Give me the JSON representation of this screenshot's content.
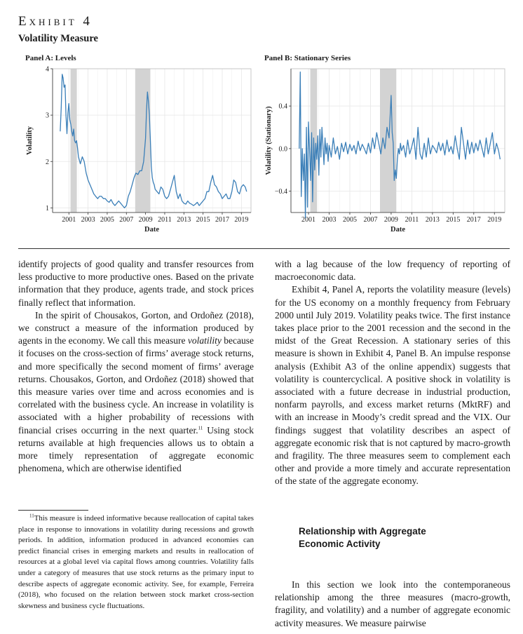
{
  "exhibit": {
    "label": "Exhibit 4",
    "subtitle": "Volatility Measure"
  },
  "chart_data": [
    {
      "type": "line",
      "title": "Panel A: Levels",
      "xlabel": "Date",
      "ylabel": "Volatility",
      "xlim": [
        1999.3,
        2020.0
      ],
      "ylim": [
        0.9,
        4.0
      ],
      "xticks": [
        "2001",
        "2003",
        "2005",
        "2007",
        "2009",
        "2011",
        "2013",
        "2015",
        "2017",
        "2019"
      ],
      "yticks": [
        "1",
        "2",
        "3",
        "4"
      ],
      "grid": true,
      "recessions": [
        [
          2001.17,
          2001.83
        ],
        [
          2007.92,
          2009.5
        ]
      ],
      "color": "#3b7fb8",
      "series": [
        {
          "x": [
            2000.1,
            2000.2,
            2000.3,
            2000.4,
            2000.5,
            2000.6,
            2000.7,
            2000.8,
            2000.9,
            2001.0,
            2001.1,
            2001.2,
            2001.3,
            2001.4,
            2001.5,
            2001.6,
            2001.7,
            2001.8,
            2001.9,
            2002.0,
            2002.2,
            2002.4,
            2002.6,
            2002.8,
            2003.0,
            2003.2,
            2003.4,
            2003.6,
            2003.8,
            2004.0,
            2004.2,
            2004.4,
            2004.6,
            2004.8,
            2005.0,
            2005.2,
            2005.4,
            2005.6,
            2005.8,
            2006.0,
            2006.2,
            2006.4,
            2006.6,
            2006.8,
            2007.0,
            2007.2,
            2007.4,
            2007.6,
            2007.8,
            2008.0,
            2008.2,
            2008.4,
            2008.6,
            2008.8,
            2009.0,
            2009.1,
            2009.2,
            2009.3,
            2009.4,
            2009.5,
            2009.6,
            2009.7,
            2009.8,
            2009.9,
            2010.0,
            2010.2,
            2010.4,
            2010.6,
            2010.8,
            2011.0,
            2011.2,
            2011.4,
            2011.6,
            2011.8,
            2012.0,
            2012.2,
            2012.4,
            2012.6,
            2012.8,
            2013.0,
            2013.2,
            2013.4,
            2013.6,
            2013.8,
            2014.0,
            2014.2,
            2014.4,
            2014.6,
            2014.8,
            2015.0,
            2015.2,
            2015.4,
            2015.6,
            2015.8,
            2016.0,
            2016.2,
            2016.4,
            2016.6,
            2016.8,
            2017.0,
            2017.2,
            2017.4,
            2017.6,
            2017.8,
            2018.0,
            2018.2,
            2018.4,
            2018.6,
            2018.8,
            2019.0,
            2019.2,
            2019.4,
            2019.55
          ],
          "y": [
            2.65,
            3.15,
            3.88,
            3.8,
            3.6,
            3.65,
            3.0,
            2.6,
            3.05,
            3.25,
            2.9,
            2.8,
            2.65,
            2.55,
            2.7,
            2.45,
            2.4,
            2.45,
            2.3,
            2.1,
            1.95,
            2.1,
            2.0,
            1.75,
            1.6,
            1.5,
            1.4,
            1.3,
            1.25,
            1.2,
            1.25,
            1.25,
            1.2,
            1.2,
            1.15,
            1.12,
            1.18,
            1.1,
            1.05,
            1.1,
            1.15,
            1.1,
            1.05,
            1.0,
            1.05,
            1.25,
            1.35,
            1.5,
            1.65,
            1.75,
            1.72,
            1.8,
            1.8,
            2.0,
            2.5,
            3.1,
            3.5,
            3.3,
            3.0,
            2.5,
            1.9,
            1.65,
            1.55,
            1.5,
            1.4,
            1.35,
            1.3,
            1.45,
            1.4,
            1.25,
            1.2,
            1.25,
            1.4,
            1.55,
            1.7,
            1.35,
            1.2,
            1.3,
            1.15,
            1.1,
            1.08,
            1.15,
            1.1,
            1.08,
            1.05,
            1.08,
            1.12,
            1.05,
            1.1,
            1.15,
            1.2,
            1.35,
            1.35,
            1.55,
            1.7,
            1.5,
            1.45,
            1.35,
            1.3,
            1.2,
            1.25,
            1.3,
            1.2,
            1.2,
            1.35,
            1.6,
            1.55,
            1.35,
            1.3,
            1.45,
            1.5,
            1.45,
            1.35
          ]
        }
      ]
    },
    {
      "type": "line",
      "title": "Panel B: Stationary Series",
      "xlabel": "Date",
      "ylabel": "Volatility (Stationary)",
      "xlim": [
        1999.3,
        2020.0
      ],
      "ylim": [
        -0.6,
        0.75
      ],
      "xticks": [
        "2001",
        "2003",
        "2005",
        "2007",
        "2009",
        "2011",
        "2013",
        "2015",
        "2017",
        "2019"
      ],
      "yticks": [
        "−0.4",
        "0.0",
        "0.4"
      ],
      "ytick_values": [
        -0.4,
        0.0,
        0.4
      ],
      "grid": true,
      "recessions": [
        [
          2001.17,
          2001.83
        ],
        [
          2007.92,
          2009.5
        ]
      ],
      "color": "#3b7fb8",
      "series": [
        {
          "x": [
            2000.1,
            2000.2,
            2000.3,
            2000.4,
            2000.5,
            2000.6,
            2000.7,
            2000.8,
            2000.9,
            2001.0,
            2001.1,
            2001.2,
            2001.3,
            2001.4,
            2001.5,
            2001.6,
            2001.7,
            2001.8,
            2001.9,
            2002.0,
            2002.1,
            2002.2,
            2002.3,
            2002.4,
            2002.5,
            2002.6,
            2002.7,
            2002.8,
            2002.9,
            2003.0,
            2003.2,
            2003.4,
            2003.6,
            2003.8,
            2004.0,
            2004.2,
            2004.4,
            2004.6,
            2004.8,
            2005.0,
            2005.2,
            2005.4,
            2005.6,
            2005.8,
            2006.0,
            2006.2,
            2006.4,
            2006.6,
            2006.8,
            2007.0,
            2007.2,
            2007.4,
            2007.6,
            2007.8,
            2008.0,
            2008.2,
            2008.4,
            2008.6,
            2008.8,
            2009.0,
            2009.1,
            2009.2,
            2009.3,
            2009.4,
            2009.5,
            2009.6,
            2009.7,
            2009.8,
            2009.9,
            2010.0,
            2010.2,
            2010.4,
            2010.6,
            2010.8,
            2011.0,
            2011.2,
            2011.4,
            2011.6,
            2011.8,
            2012.0,
            2012.2,
            2012.4,
            2012.6,
            2012.8,
            2013.0,
            2013.2,
            2013.4,
            2013.6,
            2013.8,
            2014.0,
            2014.2,
            2014.4,
            2014.6,
            2014.8,
            2015.0,
            2015.2,
            2015.4,
            2015.6,
            2015.8,
            2016.0,
            2016.2,
            2016.4,
            2016.6,
            2016.8,
            2017.0,
            2017.2,
            2017.4,
            2017.6,
            2017.8,
            2018.0,
            2018.2,
            2018.4,
            2018.6,
            2018.8,
            2019.0,
            2019.2,
            2019.4,
            2019.55
          ],
          "y": [
            0.0,
            0.72,
            -0.45,
            0.0,
            -0.3,
            -0.05,
            -0.65,
            0.2,
            -0.55,
            0.25,
            0.0,
            -0.3,
            0.15,
            -0.5,
            0.1,
            -0.2,
            0.05,
            -0.1,
            0.12,
            -0.25,
            0.18,
            -0.08,
            0.2,
            0.02,
            -0.15,
            0.1,
            -0.05,
            0.05,
            -0.12,
            0.03,
            -0.08,
            0.1,
            -0.05,
            0.02,
            -0.1,
            0.05,
            -0.03,
            0.06,
            -0.05,
            0.04,
            -0.02,
            0.03,
            -0.05,
            0.07,
            -0.02,
            0.04,
            0.0,
            -0.05,
            0.05,
            -0.04,
            0.1,
            0.0,
            0.15,
            0.05,
            -0.05,
            0.1,
            0.0,
            0.2,
            0.1,
            0.5,
            0.15,
            0.05,
            -0.3,
            -0.2,
            -0.28,
            -0.1,
            0.0,
            -0.05,
            0.05,
            -0.02,
            0.03,
            -0.08,
            0.08,
            -0.05,
            0.02,
            0.1,
            -0.1,
            0.2,
            -0.05,
            -0.1,
            0.05,
            -0.08,
            0.1,
            -0.05,
            0.03,
            0.0,
            -0.04,
            0.06,
            -0.02,
            0.05,
            -0.06,
            0.08,
            -0.03,
            0.02,
            -0.05,
            0.12,
            0.0,
            -0.1,
            0.2,
            0.05,
            -0.1,
            0.08,
            -0.05,
            0.06,
            -0.04,
            0.05,
            -0.02,
            0.08,
            0.0,
            -0.08,
            0.1,
            -0.05,
            0.05,
            0.15,
            -0.05,
            0.05,
            -0.02,
            -0.1
          ]
        }
      ]
    }
  ],
  "left_column": {
    "p1": "identify projects of good quality and transfer resources from less productive to more productive ones. Based on the private information that they produce, agents trade, and stock prices finally reflect that information.",
    "p2_a": "In the spirit of Chousakos, Gorton, and Ordoñez (2018), we construct a measure of the information produced by agents in the economy. We call this measure ",
    "p2_em": "volatility",
    "p2_b": " because it focuses on the cross-section of firms’ average stock returns, and more specifically the second moment of firms’ average returns. Chousakos, Gorton, and Ordoñez (2018) showed that this measure varies over time and across economies and is correlated with the business cycle. An increase in volatility is associated with a higher probability of recessions with financial crises occurring in the next quarter.",
    "p2_fnref": "11",
    "p2_c": " Using stock returns available at high frequencies allows us to obtain a more timely representation of aggregate economic phenomena, which are otherwise identified"
  },
  "footnote": {
    "number": "11",
    "text": "This measure is indeed informative because reallocation of capital takes place in response to innovations in volatility during recessions and growth periods. In addition, information produced in advanced economies can predict financial crises in emerging markets and results in reallocation of resources at a global level via capital flows among countries. Volatility falls under a category of measures that use stock returns as the primary input to describe aspects of aggregate economic activity. See, for example, Ferreira (2018), who focused on the relation between stock market cross-section skewness and business cycle fluctuations."
  },
  "right_column": {
    "p1": "with a lag because of the low frequency of reporting of macroeconomic data.",
    "p2": "Exhibit 4, Panel A, reports the volatility measure (levels) for the US economy on a monthly frequency from February 2000 until July 2019. Volatility peaks twice. The first instance takes place prior to the 2001 recession and the second in the midst of the Great Recession. A stationary series of this measure is shown in Exhibit 4, Panel B. An impulse response analysis (Exhibit A3 of the online appendix) suggests that volatility is countercyclical. A positive shock in volatility is associated with a future decrease in industrial production, nonfarm payrolls, and excess market returns (MktRF) and with an increase in Moody’s credit spread and the VIX. Our findings suggest that volatility describes an aspect of aggregate economic risk that is not captured by macro-growth and fragility. The three measures seem to complement each other and provide a more timely and accurate representation of the state of the aggregate economy.",
    "heading_line1": "Relationship with Aggregate",
    "heading_line2": "Economic Activity",
    "p3": "In this section we look into the contemporaneous relationship among the three measures (macro-growth, fragility, and volatility) and a number of aggregate economic activity measures. We measure pairwise"
  }
}
